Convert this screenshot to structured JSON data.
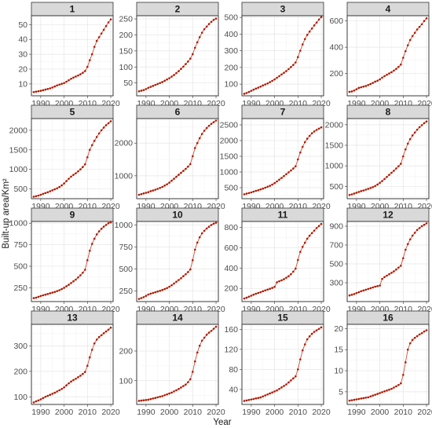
{
  "xlabel": "Year",
  "ylabel": "Built-up area/Km²",
  "chart_data": {
    "type": "line",
    "x_range": [
      1986,
      2021
    ],
    "x_ticks": [
      1990,
      2000,
      2010,
      2020
    ],
    "x": [
      1987,
      1988,
      1989,
      1990,
      1991,
      1992,
      1993,
      1994,
      1995,
      1996,
      1997,
      1998,
      1999,
      2000,
      2001,
      2002,
      2003,
      2004,
      2005,
      2006,
      2007,
      2008,
      2009,
      2010,
      2011,
      2012,
      2013,
      2014,
      2015,
      2016,
      2017,
      2018,
      2019,
      2020
    ],
    "series_color": "#b01800",
    "panels": [
      {
        "title": "1",
        "ylim": [
          2,
          56
        ],
        "yticks": [
          10,
          20,
          30,
          40,
          50
        ],
        "values": [
          4.5,
          4.8,
          5.1,
          5.4,
          5.8,
          6.2,
          6.6,
          7.0,
          7.6,
          8.3,
          9.0,
          9.6,
          10.1,
          10.6,
          11.5,
          12.5,
          13.5,
          14.3,
          15.0,
          15.7,
          16.5,
          17.5,
          18.7,
          21.5,
          26.0,
          30.0,
          35.0,
          39.0,
          41.5,
          44.0,
          46.5,
          49.0,
          51.5,
          53.5
        ]
      },
      {
        "title": "2",
        "ylim": [
          10,
          260
        ],
        "yticks": [
          50,
          100,
          150,
          200,
          250
        ],
        "values": [
          24,
          26,
          28,
          31,
          35,
          38,
          41,
          44,
          47,
          50,
          53,
          57,
          61,
          65,
          70,
          75,
          81,
          87,
          94,
          101,
          109,
          117,
          126,
          140,
          160,
          177,
          193,
          207,
          218,
          226,
          234,
          241,
          247,
          251
        ]
      },
      {
        "title": "3",
        "ylim": [
          30,
          510
        ],
        "yticks": [
          100,
          200,
          300,
          400,
          500
        ],
        "values": [
          42,
          47,
          53,
          60,
          67,
          73,
          79,
          85,
          92,
          98,
          104,
          112,
          120,
          128,
          138,
          148,
          158,
          168,
          178,
          190,
          202,
          215,
          230,
          262,
          300,
          338,
          370,
          395,
          415,
          433,
          452,
          469,
          487,
          502
        ]
      },
      {
        "title": "4",
        "ylim": [
          30,
          640
        ],
        "yticks": [
          200,
          400,
          600
        ],
        "values": [
          60,
          63,
          70,
          80,
          90,
          95,
          100,
          105,
          112,
          120,
          128,
          138,
          145,
          155,
          168,
          180,
          190,
          200,
          210,
          222,
          235,
          250,
          268,
          320,
          370,
          415,
          455,
          485,
          510,
          535,
          555,
          575,
          600,
          620
        ]
      },
      {
        "title": "5",
        "ylim": [
          250,
          2300
        ],
        "yticks": [
          500,
          1000,
          1500,
          2000
        ],
        "values": [
          300,
          315,
          330,
          350,
          375,
          395,
          415,
          440,
          465,
          490,
          515,
          550,
          590,
          640,
          700,
          760,
          815,
          860,
          900,
          950,
          1000,
          1060,
          1130,
          1310,
          1500,
          1620,
          1730,
          1830,
          1920,
          2000,
          2070,
          2130,
          2180,
          2230
        ]
      },
      {
        "title": "6",
        "ylim": [
          300,
          2750
        ],
        "yticks": [
          1000,
          2000
        ],
        "values": [
          420,
          440,
          460,
          480,
          500,
          530,
          550,
          575,
          600,
          630,
          660,
          700,
          740,
          790,
          850,
          910,
          970,
          1030,
          1090,
          1150,
          1210,
          1280,
          1360,
          1600,
          1850,
          2000,
          2150,
          2280,
          2380,
          2460,
          2530,
          2590,
          2640,
          2690
        ]
      },
      {
        "title": "7",
        "ylim": [
          150,
          2700
        ],
        "yticks": [
          500,
          1000,
          1500,
          2000,
          2500
        ],
        "values": [
          290,
          310,
          330,
          350,
          375,
          400,
          420,
          445,
          470,
          500,
          530,
          560,
          600,
          645,
          700,
          755,
          810,
          870,
          930,
          990,
          1050,
          1110,
          1180,
          1400,
          1620,
          1800,
          1950,
          2060,
          2150,
          2230,
          2290,
          2340,
          2380,
          2420
        ]
      },
      {
        "title": "8",
        "ylim": [
          200,
          2150
        ],
        "yticks": [
          500,
          1000,
          1500,
          2000
        ],
        "values": [
          290,
          305,
          325,
          345,
          365,
          385,
          400,
          420,
          440,
          460,
          480,
          510,
          545,
          585,
          630,
          680,
          730,
          780,
          830,
          880,
          935,
          990,
          1050,
          1230,
          1400,
          1540,
          1650,
          1740,
          1810,
          1880,
          1940,
          1990,
          2040,
          2080
        ]
      },
      {
        "title": "9",
        "ylim": [
          90,
          1020
        ],
        "yticks": [
          250,
          500,
          750,
          1000
        ],
        "values": [
          130,
          135,
          145,
          155,
          163,
          170,
          178,
          186,
          194,
          202,
          212,
          222,
          235,
          250,
          268,
          285,
          305,
          325,
          345,
          370,
          395,
          425,
          460,
          570,
          680,
          760,
          820,
          870,
          905,
          935,
          960,
          980,
          1000,
          1010
        ]
      },
      {
        "title": "10",
        "ylim": [
          130,
          1040
        ],
        "yticks": [
          250,
          500,
          750,
          1000
        ],
        "values": [
          160,
          170,
          180,
          195,
          210,
          220,
          228,
          236,
          244,
          252,
          262,
          272,
          284,
          298,
          315,
          335,
          355,
          375,
          395,
          418,
          440,
          465,
          495,
          600,
          720,
          800,
          860,
          905,
          935,
          960,
          980,
          1000,
          1015,
          1025
        ]
      },
      {
        "title": "11",
        "ylim": [
          70,
          860
        ],
        "yticks": [
          200,
          400,
          600,
          800
        ],
        "values": [
          100,
          108,
          118,
          128,
          138,
          147,
          155,
          163,
          172,
          180,
          188,
          196,
          205,
          215,
          260,
          270,
          280,
          290,
          305,
          320,
          340,
          365,
          395,
          480,
          560,
          610,
          650,
          690,
          720,
          745,
          770,
          795,
          815,
          835
        ]
      },
      {
        "title": "12",
        "ylim": [
          100,
          950
        ],
        "yticks": [
          300,
          500,
          700,
          900
        ],
        "values": [
          165,
          172,
          180,
          190,
          200,
          210,
          218,
          226,
          234,
          242,
          250,
          258,
          264,
          270,
          340,
          360,
          375,
          390,
          405,
          420,
          440,
          460,
          480,
          560,
          650,
          710,
          760,
          800,
          830,
          860,
          880,
          900,
          915,
          930
        ]
      },
      {
        "title": "13",
        "ylim": [
          70,
          385
        ],
        "yticks": [
          100,
          200,
          300
        ],
        "values": [
          78,
          82,
          86,
          90,
          95,
          100,
          104,
          108,
          112,
          116,
          121,
          126,
          131,
          137,
          145,
          153,
          160,
          166,
          171,
          177,
          183,
          190,
          198,
          222,
          255,
          285,
          310,
          325,
          335,
          342,
          350,
          357,
          364,
          372
        ]
      },
      {
        "title": "14",
        "ylim": [
          20,
          290
        ],
        "yticks": [
          100,
          200
        ],
        "values": [
          32,
          33,
          34,
          35,
          36,
          38,
          40,
          42,
          44,
          46,
          48,
          51,
          54,
          57,
          60,
          64,
          68,
          72,
          77,
          82,
          87,
          95,
          105,
          130,
          165,
          195,
          218,
          235,
          245,
          255,
          262,
          268,
          275,
          282
        ]
      },
      {
        "title": "15",
        "ylim": [
          10,
          170
        ],
        "yticks": [
          40,
          80,
          120,
          160
        ],
        "values": [
          17,
          18,
          19,
          20,
          21,
          22,
          23,
          24,
          26,
          28,
          30,
          32,
          34,
          36,
          38,
          41,
          44,
          47,
          50,
          54,
          58,
          62,
          66,
          80,
          100,
          118,
          130,
          140,
          146,
          151,
          155,
          158,
          161,
          164
        ]
      },
      {
        "title": "16",
        "ylim": [
          2,
          21
        ],
        "yticks": [
          5,
          10,
          15,
          20
        ],
        "values": [
          2.9,
          3.0,
          3.1,
          3.2,
          3.3,
          3.4,
          3.5,
          3.6,
          3.7,
          3.9,
          4.1,
          4.3,
          4.5,
          4.7,
          4.9,
          5.1,
          5.3,
          5.5,
          5.7,
          6.0,
          6.3,
          6.6,
          7.0,
          9.0,
          12.0,
          15.0,
          16.5,
          17.3,
          17.8,
          18.2,
          18.6,
          18.9,
          19.3,
          19.6
        ]
      }
    ]
  }
}
